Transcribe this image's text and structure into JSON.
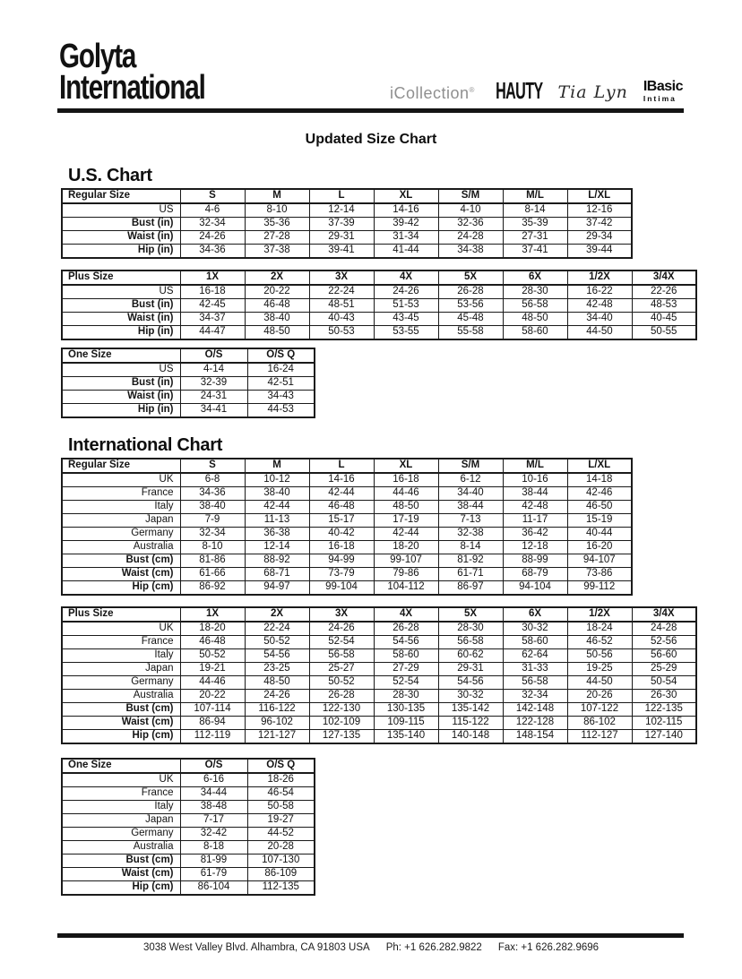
{
  "header": {
    "company_line1": "Golyta",
    "company_line2": "International",
    "brands": {
      "icollection": "iCollection",
      "icollection_mark": "®",
      "hauty": "HAUTY",
      "tia_lyn": "Tia Lyn",
      "ibasic_top": "IBasic",
      "ibasic_bottom": "Intima"
    }
  },
  "title": "Updated Size Chart",
  "sections": {
    "us": {
      "heading": "U.S. Chart",
      "tables": {
        "regular": {
          "corner": "Regular Size",
          "columns": [
            "S",
            "M",
            "L",
            "XL",
            "S/M",
            "M/L",
            "L/XL"
          ],
          "rows": [
            {
              "label": "US",
              "bold": false,
              "values": [
                "4-6",
                "8-10",
                "12-14",
                "14-16",
                "4-10",
                "8-14",
                "12-16"
              ]
            },
            {
              "label": "Bust (in)",
              "bold": true,
              "values": [
                "32-34",
                "35-36",
                "37-39",
                "39-42",
                "32-36",
                "35-39",
                "37-42"
              ]
            },
            {
              "label": "Waist (in)",
              "bold": true,
              "values": [
                "24-26",
                "27-28",
                "29-31",
                "31-34",
                "24-28",
                "27-31",
                "29-34"
              ]
            },
            {
              "label": "Hip (in)",
              "bold": true,
              "values": [
                "34-36",
                "37-38",
                "39-41",
                "41-44",
                "34-38",
                "37-41",
                "39-44"
              ]
            }
          ]
        },
        "plus": {
          "corner": "Plus Size",
          "columns": [
            "1X",
            "2X",
            "3X",
            "4X",
            "5X",
            "6X",
            "1/2X",
            "3/4X"
          ],
          "rows": [
            {
              "label": "US",
              "bold": false,
              "values": [
                "16-18",
                "20-22",
                "22-24",
                "24-26",
                "26-28",
                "28-30",
                "16-22",
                "22-26"
              ]
            },
            {
              "label": "Bust (in)",
              "bold": true,
              "values": [
                "42-45",
                "46-48",
                "48-51",
                "51-53",
                "53-56",
                "56-58",
                "42-48",
                "48-53"
              ]
            },
            {
              "label": "Waist (in)",
              "bold": true,
              "values": [
                "34-37",
                "38-40",
                "40-43",
                "43-45",
                "45-48",
                "48-50",
                "34-40",
                "40-45"
              ]
            },
            {
              "label": "Hip (in)",
              "bold": true,
              "values": [
                "44-47",
                "48-50",
                "50-53",
                "53-55",
                "55-58",
                "58-60",
                "44-50",
                "50-55"
              ]
            }
          ]
        },
        "one": {
          "corner": "One Size",
          "columns": [
            "O/S",
            "O/S Q"
          ],
          "rows": [
            {
              "label": "US",
              "bold": false,
              "values": [
                "4-14",
                "16-24"
              ]
            },
            {
              "label": "Bust (in)",
              "bold": true,
              "values": [
                "32-39",
                "42-51"
              ]
            },
            {
              "label": "Waist (in)",
              "bold": true,
              "values": [
                "24-31",
                "34-43"
              ]
            },
            {
              "label": "Hip (in)",
              "bold": true,
              "values": [
                "34-41",
                "44-53"
              ]
            }
          ]
        }
      }
    },
    "intl": {
      "heading": "International Chart",
      "tables": {
        "regular": {
          "corner": "Regular Size",
          "columns": [
            "S",
            "M",
            "L",
            "XL",
            "S/M",
            "M/L",
            "L/XL"
          ],
          "rows": [
            {
              "label": "UK",
              "bold": false,
              "values": [
                "6-8",
                "10-12",
                "14-16",
                "16-18",
                "6-12",
                "10-16",
                "14-18"
              ]
            },
            {
              "label": "France",
              "bold": false,
              "values": [
                "34-36",
                "38-40",
                "42-44",
                "44-46",
                "34-40",
                "38-44",
                "42-46"
              ]
            },
            {
              "label": "Italy",
              "bold": false,
              "values": [
                "38-40",
                "42-44",
                "46-48",
                "48-50",
                "38-44",
                "42-48",
                "46-50"
              ]
            },
            {
              "label": "Japan",
              "bold": false,
              "values": [
                "7-9",
                "11-13",
                "15-17",
                "17-19",
                "7-13",
                "11-17",
                "15-19"
              ]
            },
            {
              "label": "Germany",
              "bold": false,
              "values": [
                "32-34",
                "36-38",
                "40-42",
                "42-44",
                "32-38",
                "36-42",
                "40-44"
              ]
            },
            {
              "label": "Australia",
              "bold": false,
              "values": [
                "8-10",
                "12-14",
                "16-18",
                "18-20",
                "8-14",
                "12-18",
                "16-20"
              ]
            },
            {
              "label": "Bust (cm)",
              "bold": true,
              "values": [
                "81-86",
                "88-92",
                "94-99",
                "99-107",
                "81-92",
                "88-99",
                "94-107"
              ]
            },
            {
              "label": "Waist (cm)",
              "bold": true,
              "values": [
                "61-66",
                "68-71",
                "73-79",
                "79-86",
                "61-71",
                "68-79",
                "73-86"
              ]
            },
            {
              "label": "Hip (cm)",
              "bold": true,
              "values": [
                "86-92",
                "94-97",
                "99-104",
                "104-112",
                "86-97",
                "94-104",
                "99-112"
              ]
            }
          ]
        },
        "plus": {
          "corner": "Plus Size",
          "columns": [
            "1X",
            "2X",
            "3X",
            "4X",
            "5X",
            "6X",
            "1/2X",
            "3/4X"
          ],
          "rows": [
            {
              "label": "UK",
              "bold": false,
              "values": [
                "18-20",
                "22-24",
                "24-26",
                "26-28",
                "28-30",
                "30-32",
                "18-24",
                "24-28"
              ]
            },
            {
              "label": "France",
              "bold": false,
              "values": [
                "46-48",
                "50-52",
                "52-54",
                "54-56",
                "56-58",
                "58-60",
                "46-52",
                "52-56"
              ]
            },
            {
              "label": "Italy",
              "bold": false,
              "values": [
                "50-52",
                "54-56",
                "56-58",
                "58-60",
                "60-62",
                "62-64",
                "50-56",
                "56-60"
              ]
            },
            {
              "label": "Japan",
              "bold": false,
              "values": [
                "19-21",
                "23-25",
                "25-27",
                "27-29",
                "29-31",
                "31-33",
                "19-25",
                "25-29"
              ]
            },
            {
              "label": "Germany",
              "bold": false,
              "values": [
                "44-46",
                "48-50",
                "50-52",
                "52-54",
                "54-56",
                "56-58",
                "44-50",
                "50-54"
              ]
            },
            {
              "label": "Australia",
              "bold": false,
              "values": [
                "20-22",
                "24-26",
                "26-28",
                "28-30",
                "30-32",
                "32-34",
                "20-26",
                "26-30"
              ]
            },
            {
              "label": "Bust (cm)",
              "bold": true,
              "values": [
                "107-114",
                "116-122",
                "122-130",
                "130-135",
                "135-142",
                "142-148",
                "107-122",
                "122-135"
              ]
            },
            {
              "label": "Waist (cm)",
              "bold": true,
              "values": [
                "86-94",
                "96-102",
                "102-109",
                "109-115",
                "115-122",
                "122-128",
                "86-102",
                "102-115"
              ]
            },
            {
              "label": "Hip (cm)",
              "bold": true,
              "values": [
                "112-119",
                "121-127",
                "127-135",
                "135-140",
                "140-148",
                "148-154",
                "112-127",
                "127-140"
              ]
            }
          ]
        },
        "one": {
          "corner": "One Size",
          "columns": [
            "O/S",
            "O/S Q"
          ],
          "rows": [
            {
              "label": "UK",
              "bold": false,
              "values": [
                "6-16",
                "18-26"
              ]
            },
            {
              "label": "France",
              "bold": false,
              "values": [
                "34-44",
                "46-54"
              ]
            },
            {
              "label": "Italy",
              "bold": false,
              "values": [
                "38-48",
                "50-58"
              ]
            },
            {
              "label": "Japan",
              "bold": false,
              "values": [
                "7-17",
                "19-27"
              ]
            },
            {
              "label": "Germany",
              "bold": false,
              "values": [
                "32-42",
                "44-52"
              ]
            },
            {
              "label": "Australia",
              "bold": false,
              "values": [
                "8-18",
                "20-28"
              ]
            },
            {
              "label": "Bust (cm)",
              "bold": true,
              "values": [
                "81-99",
                "107-130"
              ]
            },
            {
              "label": "Waist (cm)",
              "bold": true,
              "values": [
                "61-79",
                "86-109"
              ]
            },
            {
              "label": "Hip (cm)",
              "bold": true,
              "values": [
                "86-104",
                "112-135"
              ]
            }
          ]
        }
      }
    }
  },
  "footer": {
    "address": "3038 West Valley Blvd. Alhambra, CA 91803 USA",
    "phone": "Ph: +1 626.282.9822",
    "fax": "Fax: +1 626.282.9696"
  }
}
